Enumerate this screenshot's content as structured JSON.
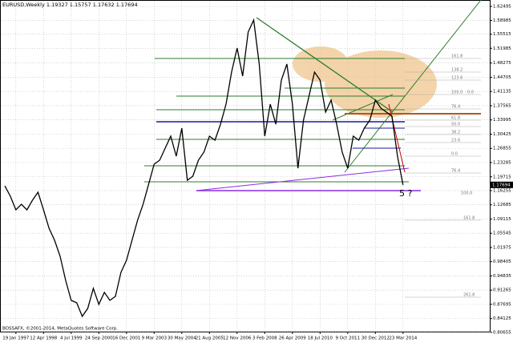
{
  "chart_data": {
    "type": "line",
    "title": "EURUSD,Weekly  1.19327 1.15757 1.17632 1.17694",
    "categories": [
      null,
      null,
      "19 Jan 1997",
      null,
      null,
      null,
      null,
      "12 Apr 1998",
      null,
      null,
      null,
      null,
      "4 Jul 1999",
      null,
      null,
      null,
      null,
      "24 Sep 2000",
      null,
      null,
      null,
      null,
      "16 Dec 2001",
      null,
      null,
      null,
      null,
      "9 Mar 2003",
      null,
      null,
      null,
      null,
      "30 May 2004",
      null,
      null,
      null,
      null,
      "21 Aug 2005",
      null,
      null,
      null,
      null,
      "12 Nov 2006",
      null,
      null,
      null,
      null,
      "3 Feb 2008",
      null,
      null,
      null,
      null,
      "26 Apr 2009",
      null,
      null,
      null,
      null,
      "18 Jul 2010",
      null,
      null,
      null,
      null,
      "9 Oct 2011",
      null,
      null,
      null,
      null,
      "30 Dec 2012",
      null,
      null,
      null,
      null,
      "23 Mar 2014"
    ],
    "series": [
      {
        "name": "EURUSD",
        "color": "#000000",
        "values": [
          1.1745,
          1.1484,
          1.1142,
          1.1282,
          1.1142,
          1.1383,
          1.1584,
          1.1142,
          1.0679,
          1.0378,
          0.9975,
          0.9372,
          0.887,
          0.8809,
          0.8467,
          0.8668,
          0.9171,
          0.8769,
          0.907,
          0.887,
          0.897,
          0.9573,
          0.9875,
          1.0378,
          1.088,
          1.1282,
          1.1785,
          1.2288,
          1.2389,
          1.269,
          1.2992,
          1.2489,
          1.3193,
          1.1886,
          1.1987,
          1.2389,
          1.259,
          1.2992,
          1.2891,
          1.3293,
          1.3796,
          1.46,
          1.5204,
          1.45,
          1.5606,
          1.5908,
          1.4802,
          1.2992,
          1.3796,
          1.3293,
          1.4399,
          1.4802,
          1.3796,
          1.2187,
          1.3394,
          1.3997,
          1.46,
          1.4399,
          1.3595,
          1.3897,
          1.3293,
          1.259,
          1.2187,
          1.2992,
          1.2891,
          1.3193,
          1.3394,
          1.3897,
          1.3696,
          1.3595,
          1.3495,
          1.2489,
          1.1769
        ]
      }
    ],
    "ylim": [
      0.80655,
      1.62495
    ],
    "yticks": [
      1.62495,
      1.58985,
      1.55515,
      1.51985,
      1.48275,
      1.44705,
      1.41135,
      1.37565,
      1.33995,
      1.30425,
      1.26855,
      1.23285,
      1.19715,
      1.16255,
      1.12685,
      1.09115,
      1.05545,
      1.01975,
      0.98405,
      0.94835,
      0.91265,
      0.87695,
      0.84125,
      0.80655
    ],
    "last_price": 1.17694,
    "grid": true,
    "annotations": [
      "161.8",
      "138.2",
      "123.6",
      "100.0",
      "0.0",
      "76.4",
      "61.8",
      "50.0",
      "38.2",
      "23.6",
      "0.0",
      "76.4",
      "100.0",
      "161.8",
      "261.8",
      "5 ?"
    ],
    "copyright": "BOSSAFX, ©2001-2014, MetaQuotes Software Corp."
  }
}
